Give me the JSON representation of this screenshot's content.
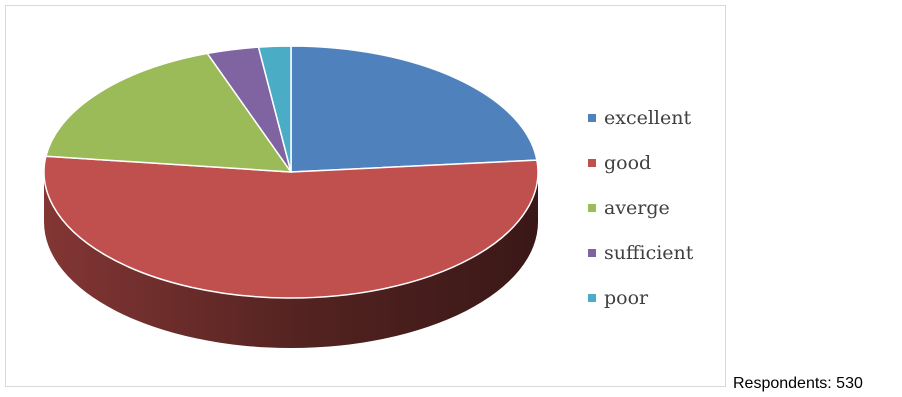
{
  "chart_data": {
    "type": "pie",
    "title": "",
    "legend_position": "right",
    "slices": [
      {
        "label": "excellent",
        "value": 23.5,
        "color": "#4f81bd"
      },
      {
        "label": "good",
        "value": 53.5,
        "color": "#c0504d"
      },
      {
        "label": "averge",
        "value": 17.5,
        "color": "#9bbb59"
      },
      {
        "label": "sufficient",
        "value": 3.4,
        "color": "#8064a2"
      },
      {
        "label": "poor",
        "value": 2.1,
        "color": "#4bacc6"
      }
    ]
  },
  "footer": {
    "respondents": "Respondents: 530"
  }
}
